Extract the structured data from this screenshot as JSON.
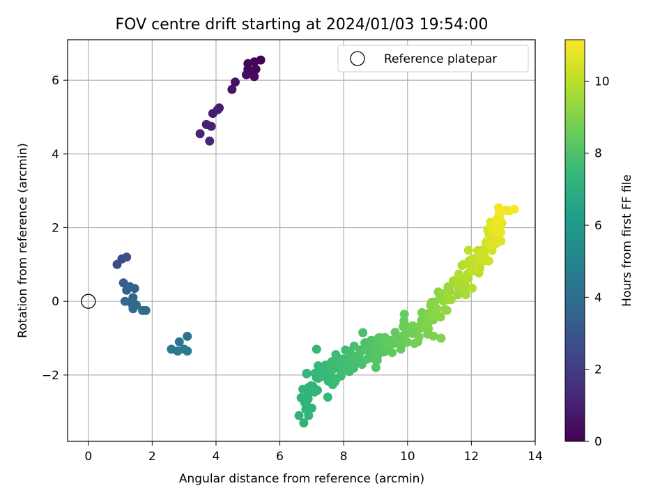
{
  "chart_data": {
    "type": "scatter",
    "title": "FOV centre drift starting at 2024/01/03 19:54:00",
    "xlabel": "Angular distance from reference (arcmin)",
    "ylabel": "Rotation from reference (arcmin)",
    "xlim": [
      -0.65,
      14.0
    ],
    "ylim": [
      -3.8,
      7.1
    ],
    "xticks": [
      "0",
      "2",
      "4",
      "6",
      "8",
      "10",
      "12",
      "14"
    ],
    "yticks": [
      "−2",
      "0",
      "2",
      "4",
      "6"
    ],
    "grid": true,
    "legend": {
      "position": "top-right",
      "entries": [
        "Reference platepar"
      ]
    },
    "reference_point": {
      "x": 0,
      "y": 0,
      "label": "Reference platepar"
    },
    "colorbar": {
      "label": "Hours from first FF file",
      "min": 0,
      "max": 11.15,
      "ticks": [
        "0",
        "2",
        "4",
        "6",
        "8",
        "10"
      ],
      "colormap": "viridis"
    },
    "colormap_stops": [
      "#440154",
      "#482878",
      "#3e4989",
      "#31688e",
      "#26828e",
      "#1f9e89",
      "#35b779",
      "#6ece58",
      "#b5de2b",
      "#fde725"
    ],
    "clusters": [
      {
        "x": 5.0,
        "y": 6.3,
        "hours": 0.2
      },
      {
        "x": 5.4,
        "y": 6.55,
        "hours": 0.0
      },
      {
        "x": 5.2,
        "y": 6.5,
        "hours": 0.1
      },
      {
        "x": 5.0,
        "y": 6.45,
        "hours": 0.15
      },
      {
        "x": 5.15,
        "y": 6.2,
        "hours": 0.25
      },
      {
        "x": 5.25,
        "y": 6.3,
        "hours": 0.2
      },
      {
        "x": 5.2,
        "y": 6.1,
        "hours": 0.3
      },
      {
        "x": 4.95,
        "y": 6.15,
        "hours": 0.3
      },
      {
        "x": 4.6,
        "y": 5.95,
        "hours": 0.5
      },
      {
        "x": 4.5,
        "y": 5.75,
        "hours": 0.6
      },
      {
        "x": 4.1,
        "y": 5.25,
        "hours": 0.8
      },
      {
        "x": 4.05,
        "y": 5.2,
        "hours": 0.85
      },
      {
        "x": 3.9,
        "y": 5.1,
        "hours": 0.9
      },
      {
        "x": 3.7,
        "y": 4.8,
        "hours": 1.0
      },
      {
        "x": 3.85,
        "y": 4.75,
        "hours": 1.05
      },
      {
        "x": 3.5,
        "y": 4.55,
        "hours": 1.1
      },
      {
        "x": 3.8,
        "y": 4.35,
        "hours": 1.2
      },
      {
        "x": 0.9,
        "y": 1.0,
        "hours": 2.5
      },
      {
        "x": 1.05,
        "y": 1.15,
        "hours": 2.6
      },
      {
        "x": 1.2,
        "y": 1.2,
        "hours": 2.7
      },
      {
        "x": 1.1,
        "y": 0.5,
        "hours": 3.3
      },
      {
        "x": 1.3,
        "y": 0.4,
        "hours": 3.4
      },
      {
        "x": 1.45,
        "y": 0.35,
        "hours": 3.5
      },
      {
        "x": 1.2,
        "y": 0.3,
        "hours": 3.5
      },
      {
        "x": 1.4,
        "y": 0.1,
        "hours": 3.6
      },
      {
        "x": 1.15,
        "y": 0.0,
        "hours": 3.7
      },
      {
        "x": 1.35,
        "y": -0.05,
        "hours": 3.7
      },
      {
        "x": 1.5,
        "y": -0.1,
        "hours": 3.8
      },
      {
        "x": 1.4,
        "y": -0.2,
        "hours": 3.8
      },
      {
        "x": 1.7,
        "y": -0.25,
        "hours": 3.9
      },
      {
        "x": 1.8,
        "y": -0.25,
        "hours": 3.9
      },
      {
        "x": 3.1,
        "y": -0.95,
        "hours": 4.3
      },
      {
        "x": 2.85,
        "y": -1.1,
        "hours": 4.4
      },
      {
        "x": 2.6,
        "y": -1.3,
        "hours": 4.5
      },
      {
        "x": 2.8,
        "y": -1.35,
        "hours": 4.5
      },
      {
        "x": 3.0,
        "y": -1.3,
        "hours": 4.6
      },
      {
        "x": 3.1,
        "y": -1.35,
        "hours": 4.6
      }
    ],
    "trail_outliers": [
      {
        "x": 6.6,
        "y": -3.1,
        "hours": 7.2
      },
      {
        "x": 6.75,
        "y": -3.3,
        "hours": 7.2
      },
      {
        "x": 6.9,
        "y": -3.1,
        "hours": 7.3
      },
      {
        "x": 6.8,
        "y": -2.7,
        "hours": 7.3
      },
      {
        "x": 7.0,
        "y": -2.9,
        "hours": 7.3
      },
      {
        "x": 7.15,
        "y": -1.3,
        "hours": 7.4
      },
      {
        "x": 7.5,
        "y": -2.6,
        "hours": 7.4
      },
      {
        "x": 8.6,
        "y": -0.85,
        "hours": 7.9
      },
      {
        "x": 9.9,
        "y": -0.35,
        "hours": 8.5
      },
      {
        "x": 11.05,
        "y": -1.0,
        "hours": 9.0
      },
      {
        "x": 11.75,
        "y": 1.0,
        "hours": 9.9
      },
      {
        "x": 13.35,
        "y": 2.5,
        "hours": 11.1
      }
    ],
    "trail": {
      "description_points": [
        {
          "x": 6.7,
          "y": -2.9,
          "hours": 7.2
        },
        {
          "x": 7.2,
          "y": -2.0,
          "hours": 7.4
        },
        {
          "x": 7.8,
          "y": -1.8,
          "hours": 7.6
        },
        {
          "x": 8.5,
          "y": -1.5,
          "hours": 7.9
        },
        {
          "x": 9.2,
          "y": -1.2,
          "hours": 8.2
        },
        {
          "x": 10.0,
          "y": -0.9,
          "hours": 8.6
        },
        {
          "x": 10.6,
          "y": -0.6,
          "hours": 8.9
        },
        {
          "x": 11.2,
          "y": 0.0,
          "hours": 9.3
        },
        {
          "x": 11.8,
          "y": 0.6,
          "hours": 9.8
        },
        {
          "x": 12.3,
          "y": 1.2,
          "hours": 10.2
        },
        {
          "x": 12.7,
          "y": 1.8,
          "hours": 10.6
        },
        {
          "x": 13.0,
          "y": 2.4,
          "hours": 11.0
        }
      ],
      "spread": 0.18,
      "count": 260
    }
  }
}
